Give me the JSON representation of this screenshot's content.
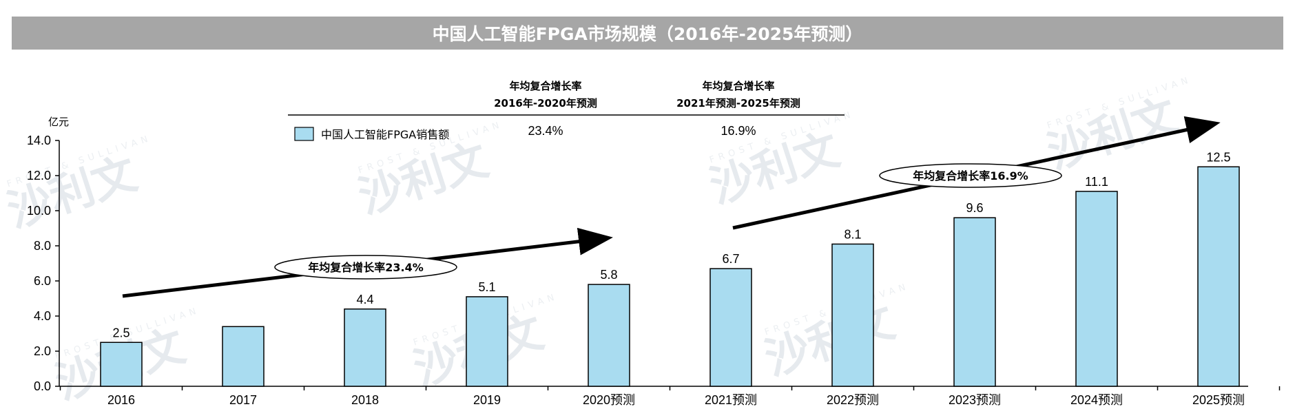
{
  "title": "中国人工智能FPGA市场规模（2016年-2025年预测）",
  "unit": "亿元",
  "legend": {
    "label": "中国人工智能FPGA销售额",
    "color": "#a9dcf0"
  },
  "cagr_table": {
    "columns": [
      {
        "line1": "年均复合增长率",
        "line2": "2016年-2020年预测",
        "value": "23.4%"
      },
      {
        "line1": "年均复合增长率",
        "line2": "2021年预测-2025年预测",
        "value": "16.9%"
      }
    ]
  },
  "annotations": {
    "left": "年均复合增长率23.4%",
    "right": "年均复合增长率16.9%"
  },
  "watermark": {
    "text": "沙利文",
    "sub": "FROST & SULLIVAN"
  },
  "chart_data": {
    "type": "bar",
    "title": "中国人工智能FPGA市场规模（2016年-2025年预测）",
    "ylabel": "亿元",
    "categories": [
      "2016",
      "2017",
      "2018",
      "2019",
      "2020预测",
      "2021预测",
      "2022预测",
      "2023预测",
      "2024预测",
      "2025预测"
    ],
    "series": [
      {
        "name": "中国人工智能FPGA销售额",
        "values": [
          2.5,
          3.4,
          4.4,
          5.1,
          5.8,
          6.7,
          8.1,
          9.6,
          11.1,
          12.5
        ],
        "labels": [
          "2.5",
          "",
          "4.4",
          "5.1",
          "5.8",
          "6.7",
          "8.1",
          "9.6",
          "11.1",
          "12.5"
        ]
      }
    ],
    "ylim": [
      0,
      14
    ],
    "yticks": [
      "0.0",
      "2.0",
      "4.0",
      "6.0",
      "8.0",
      "10.0",
      "12.0",
      "14.0"
    ],
    "grid": false,
    "legend_position": "top-left"
  }
}
